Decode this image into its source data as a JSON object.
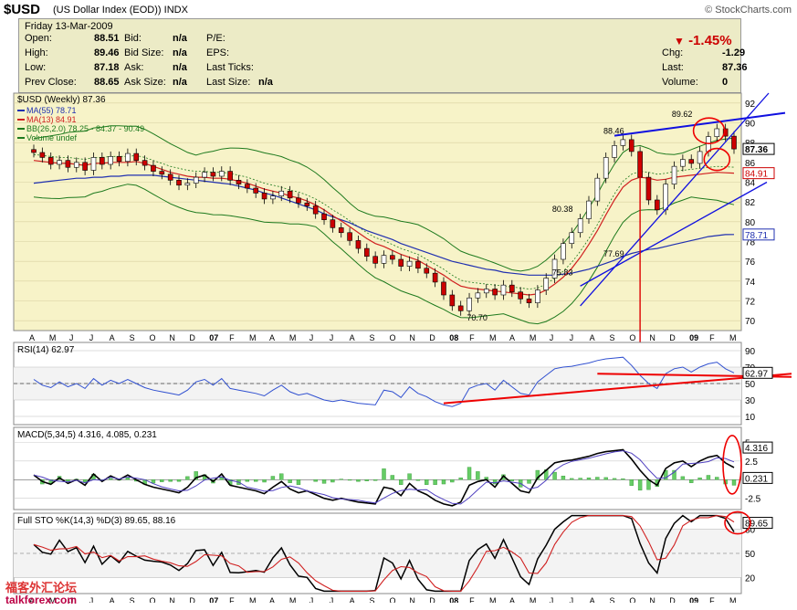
{
  "header": {
    "symbol": "$USD",
    "name": "(US Dollar Index (EOD))",
    "exchange": "INDX",
    "brand": "© StockCharts.com"
  },
  "quote": {
    "date": "Friday   13-Mar-2009",
    "change_pct": "-1.45%",
    "rows_left": [
      {
        "label": "Open:",
        "value": "88.51"
      },
      {
        "label": "High:",
        "value": "89.46"
      },
      {
        "label": "Low:",
        "value": "87.18"
      },
      {
        "label": "Prev Close:",
        "value": "88.65"
      }
    ],
    "rows_mid": [
      {
        "label": "Bid:",
        "value": "n/a"
      },
      {
        "label": "Bid Size:",
        "value": "n/a"
      },
      {
        "label": "Ask:",
        "value": "n/a"
      },
      {
        "label": "Ask Size:",
        "value": "n/a"
      }
    ],
    "rows_mid2": [
      {
        "label": "P/E:",
        "value": ""
      },
      {
        "label": "EPS:",
        "value": ""
      },
      {
        "label": "Last Ticks:",
        "value": ""
      },
      {
        "label": "Last Size:",
        "value": "n/a"
      }
    ],
    "rows_right": [
      {
        "label": "Chg:",
        "value": "-1.29"
      },
      {
        "label": "Last:",
        "value": "87.36"
      },
      {
        "label": "Volume:",
        "value": "0"
      }
    ]
  },
  "chart_data": [
    {
      "type": "line",
      "title": "$USD (Weekly) 87.36",
      "legend": [
        "MA(55) 78.71",
        "MA(13) 84.91",
        "BB(26,2.0) 78.25 - 84.37 - 90.49",
        "Volume undef"
      ],
      "x_ticks": [
        "A",
        "M",
        "J",
        "J",
        "A",
        "S",
        "O",
        "N",
        "D",
        "07",
        "F",
        "M",
        "A",
        "M",
        "J",
        "J",
        "A",
        "S",
        "O",
        "N",
        "D",
        "08",
        "F",
        "M",
        "A",
        "M",
        "J",
        "J",
        "A",
        "S",
        "O",
        "N",
        "D",
        "09",
        "F",
        "M"
      ],
      "y_ticks": [
        70,
        72,
        74,
        76,
        78,
        80,
        82,
        84,
        86,
        88,
        90,
        92
      ],
      "ylim": [
        69,
        93
      ],
      "colors": {
        "ma55": "#2030b0",
        "ma13": "#d02020",
        "bb": "#1e7a1e",
        "price": "#000000",
        "trend": "#1010e0"
      },
      "annotations": [
        "88.46",
        "80.38",
        "75.83",
        "70.70",
        "77.69",
        "89.62"
      ],
      "price_labels": [
        "87.36",
        "84.91",
        "78.71"
      ],
      "close": [
        87,
        86.5,
        85.8,
        86.2,
        85.5,
        86,
        85.2,
        86.5,
        85.8,
        86.6,
        86.1,
        86.9,
        86.2,
        85.7,
        85.1,
        84.8,
        84.2,
        83.7,
        83.9,
        84.5,
        85,
        84.6,
        85.1,
        84.2,
        83.8,
        83.4,
        82.9,
        82.3,
        82.6,
        83.1,
        82.4,
        81.9,
        81.6,
        80.8,
        80.2,
        79.4,
        78.9,
        78.1,
        77.3,
        76.5,
        75.8,
        76.6,
        76.2,
        75.5,
        76,
        75.3,
        74.8,
        73.9,
        72.6,
        71.5,
        71,
        72.3,
        72.8,
        73.2,
        72.6,
        73.6,
        72.9,
        72.2,
        71.8,
        73.1,
        74.3,
        76.2,
        77.8,
        78.9,
        80.3,
        82.1,
        84.4,
        86.5,
        87.7,
        88.3,
        87.1,
        84.5,
        82.2,
        81.2,
        83.8,
        85.6,
        86.3,
        85.9,
        87.1,
        88.6,
        89.4,
        88.65,
        87.36
      ],
      "ma13": [
        86.2,
        86.1,
        86,
        85.9,
        85.9,
        85.8,
        85.7,
        85.9,
        85.9,
        86,
        86,
        86,
        86.1,
        85.9,
        85.6,
        85.3,
        85,
        84.8,
        84.6,
        84.5,
        84.5,
        84.4,
        84.4,
        84.3,
        84.1,
        83.9,
        83.6,
        83.3,
        83.1,
        82.9,
        82.6,
        82.4,
        82.1,
        81.7,
        81.2,
        80.6,
        80.1,
        79.5,
        78.9,
        78.3,
        77.8,
        77.5,
        77.1,
        76.7,
        76.4,
        76.1,
        75.6,
        75.1,
        74.6,
        74,
        73.5,
        73.3,
        73.2,
        73.1,
        73,
        72.9,
        72.8,
        72.7,
        72.6,
        72.7,
        73.1,
        73.7,
        74.4,
        75.3,
        76.4,
        77.7,
        79.1,
        80.7,
        82.2,
        83.5,
        84.2,
        84.5,
        84.4,
        84.2,
        84.3,
        84.5,
        84.6,
        84.7,
        84.8,
        84.9,
        85,
        84.95,
        84.91
      ],
      "ma55": [
        83.9,
        84,
        84.1,
        84.2,
        84.3,
        84.4,
        84.4,
        84.5,
        84.5,
        84.6,
        84.6,
        84.7,
        84.7,
        84.7,
        84.7,
        84.6,
        84.5,
        84.4,
        84.3,
        84.2,
        84.1,
        84,
        83.9,
        83.8,
        83.6,
        83.4,
        83.2,
        82.9,
        82.7,
        82.4,
        82.1,
        81.8,
        81.5,
        81.2,
        80.8,
        80.5,
        80.2,
        79.9,
        79.5,
        79.1,
        78.8,
        78.5,
        78.2,
        77.8,
        77.5,
        77.2,
        76.9,
        76.6,
        76.3,
        76,
        75.8,
        75.6,
        75.4,
        75.2,
        75.1,
        74.9,
        74.8,
        74.7,
        74.6,
        74.6,
        74.6,
        74.6,
        74.7,
        74.8,
        75,
        75.2,
        75.5,
        75.8,
        76.1,
        76.5,
        76.8,
        77,
        77.2,
        77.3,
        77.5,
        77.7,
        77.9,
        78.1,
        78.3,
        78.5,
        78.6,
        78.7,
        78.71
      ]
    },
    {
      "type": "line",
      "title": "RSI(14) 62.97",
      "y_ticks": [
        10,
        30,
        50,
        70,
        90
      ],
      "ylim": [
        0,
        100
      ],
      "label": "62.97",
      "values": [
        55,
        48,
        45,
        52,
        46,
        50,
        44,
        56,
        48,
        54,
        50,
        55,
        50,
        45,
        42,
        40,
        38,
        36,
        42,
        52,
        55,
        48,
        56,
        44,
        42,
        40,
        38,
        35,
        42,
        48,
        40,
        36,
        38,
        34,
        30,
        28,
        30,
        28,
        26,
        25,
        24,
        42,
        40,
        33,
        46,
        38,
        34,
        28,
        24,
        22,
        26,
        44,
        48,
        50,
        42,
        54,
        46,
        38,
        36,
        52,
        60,
        68,
        70,
        71,
        73,
        75,
        78,
        80,
        81,
        82,
        72,
        60,
        50,
        44,
        62,
        68,
        70,
        64,
        70,
        74,
        76,
        68,
        63
      ]
    },
    {
      "type": "line",
      "title": "MACD(5,34,5) 4.316, 4.085, 0.231",
      "y_ticks": [
        -2.5,
        0,
        2.5,
        5
      ],
      "ylim": [
        -4,
        7
      ],
      "labels": [
        "4.316",
        "0.231"
      ]
    },
    {
      "type": "line",
      "title": "Full STO %K(14,3) %D(3) 89.65, 88.16",
      "y_ticks": [
        20,
        50,
        80
      ],
      "ylim": [
        0,
        100
      ],
      "label": "89.65"
    }
  ],
  "watermark": {
    "chinese": "福客外汇论坛",
    "site": "talkforex.com"
  }
}
